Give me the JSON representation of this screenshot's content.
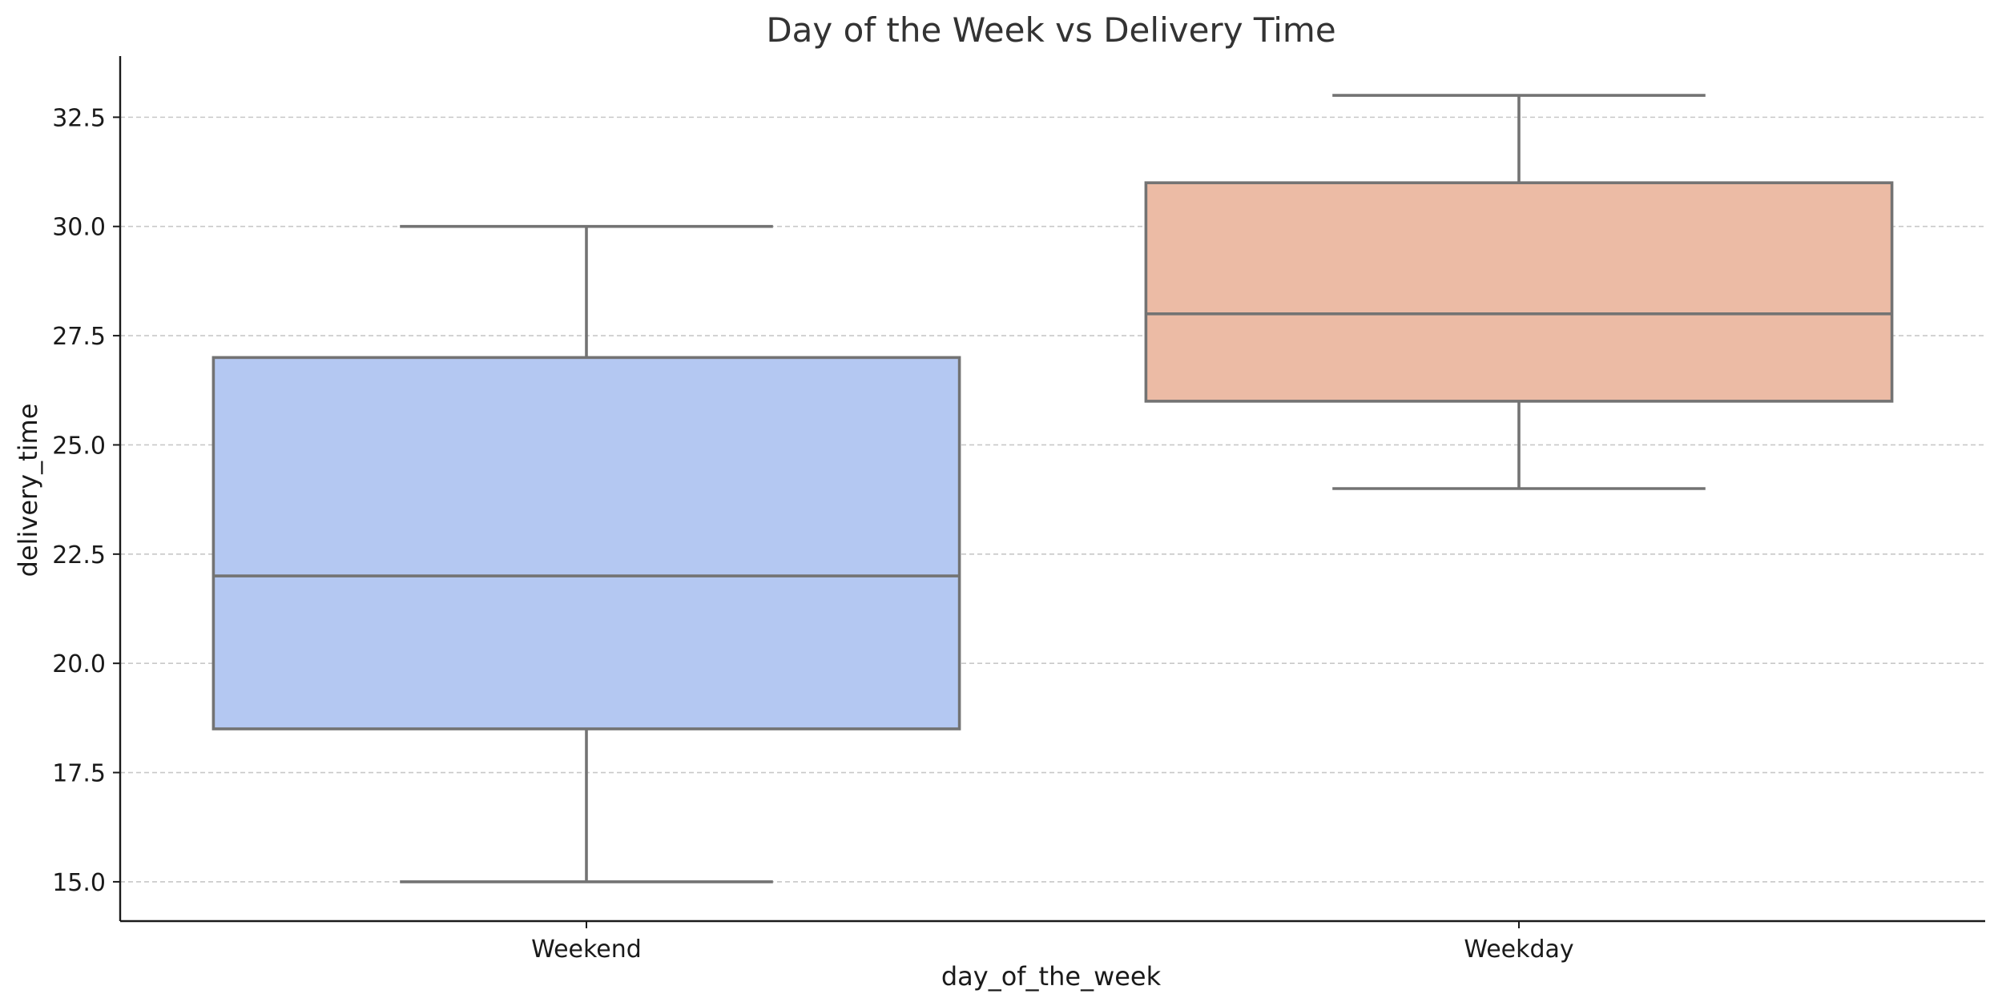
{
  "chart_data": {
    "type": "box",
    "title": "Day of the Week vs Delivery Time",
    "xlabel": "day_of_the_week",
    "ylabel": "delivery_time",
    "categories": [
      "Weekend",
      "Weekday"
    ],
    "boxes": [
      {
        "category": "Weekend",
        "whisker_low": 15.0,
        "q1": 18.5,
        "median": 22.0,
        "q3": 27.0,
        "whisker_high": 30.0,
        "color": "#b4c8f2"
      },
      {
        "category": "Weekday",
        "whisker_low": 24.0,
        "q1": 26.0,
        "median": 28.0,
        "q3": 31.0,
        "whisker_high": 33.0,
        "color": "#ecbba5"
      }
    ],
    "ylim": [
      14.1,
      33.9
    ],
    "yticks": [
      15.0,
      17.5,
      20.0,
      22.5,
      25.0,
      27.5,
      30.0,
      32.5
    ],
    "ytick_labels": [
      "15.0",
      "17.5",
      "20.0",
      "22.5",
      "25.0",
      "27.5",
      "30.0",
      "32.5"
    ],
    "grid": "horizontal-dashed",
    "line_color": "#737373"
  }
}
